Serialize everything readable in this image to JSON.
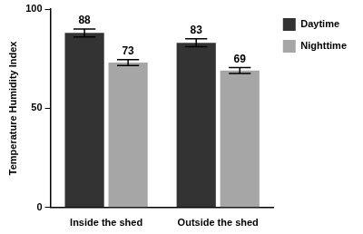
{
  "chart_data": {
    "type": "bar",
    "y_label": "Temperature Humidity Index",
    "categories": [
      "Inside the shed",
      "Outside the shed"
    ],
    "series": [
      {
        "name": "Daytime",
        "color": "#333333",
        "values": [
          88,
          83
        ],
        "errors": [
          2,
          2
        ]
      },
      {
        "name": "Nighttime",
        "color": "#a6a6a6",
        "values": [
          73,
          69
        ],
        "errors": [
          1.5,
          1.5
        ]
      }
    ],
    "ylim": [
      0,
      100
    ],
    "yticks": [
      0,
      50,
      100
    ],
    "grid": false,
    "legend": "right",
    "data_labels": true
  }
}
